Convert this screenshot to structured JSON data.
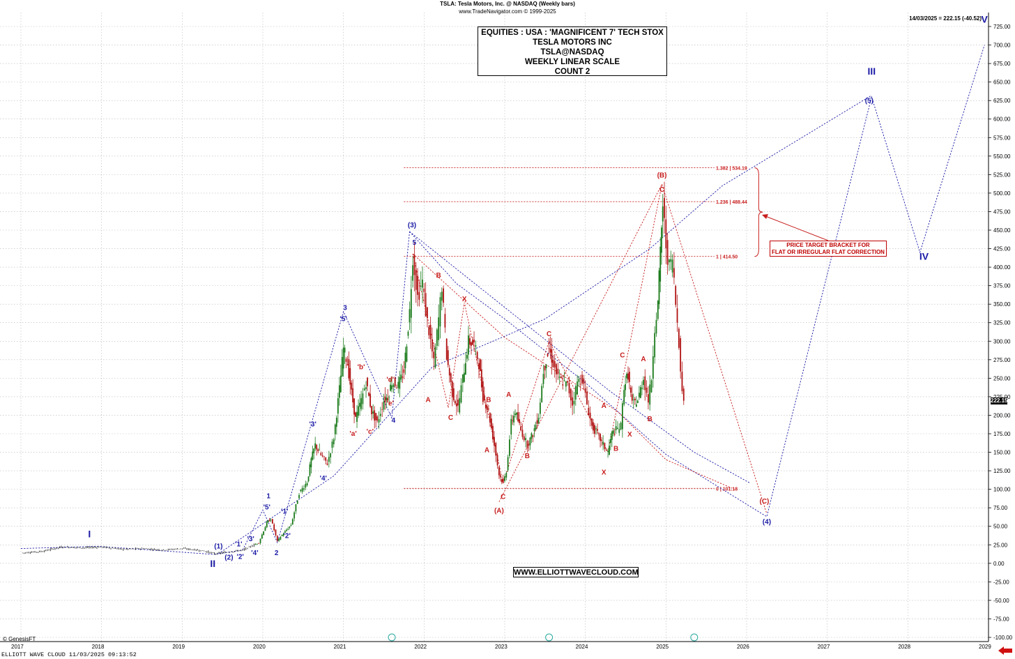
{
  "header": {
    "line1": "TSLA:  Tesla Motors, Inc. @ NASDAQ  (Weekly bars)",
    "line2": "www.TradeNavigator.com © 1999-2025",
    "stamp": "14/03/2025 = 222.15 (-40.52)"
  },
  "title_box": {
    "line1": "EQUITIES : USA : 'MAGNIFICENT 7' TECH STOX",
    "line2": "TESLA MOTORS INC",
    "line3": "TSLA@NASDAQ",
    "line4": "WEEKLY LINEAR SCALE",
    "line5": "COUNT 2"
  },
  "url_box": "WWW.ELLIOTTWAVECLOUD.COM",
  "genesis": "© GenesisFT",
  "footer": "ELLIOTT WAVE CLOUD   11/03/2025 09:13:52",
  "target_box": {
    "line1": "PRICE TARGET BRACKET FOR",
    "line2": "FLAT OR IRREGULAR FLAT CORRECTION"
  },
  "last_price_tag": "222.15",
  "colors": {
    "blue": "#1a1aa6",
    "red": "#c81e1e",
    "grid": "#b8b8b8",
    "candle_up": "#1a7a1a",
    "candle_down": "#b01010",
    "background": "#ffffff"
  },
  "chart_data": {
    "type": "line",
    "title": "TSLA:  Tesla Motors, Inc. @ NASDAQ  (Weekly bars)",
    "xlabel": "",
    "ylabel": "",
    "x_range": [
      2017.0,
      2029.0
    ],
    "ylim": [
      -100,
      725
    ],
    "y_ticks": [
      "725.00",
      "700.00",
      "675.00",
      "650.00",
      "625.00",
      "600.00",
      "575.00",
      "550.00",
      "525.00",
      "500.00",
      "475.00",
      "450.00",
      "425.00",
      "400.00",
      "375.00",
      "350.00",
      "325.00",
      "300.00",
      "275.00",
      "250.00",
      "225.00",
      "200.00",
      "175.00",
      "150.00",
      "125.00",
      "100.00",
      "75.00",
      "50.00",
      "25.00",
      "0.00",
      "-25.00",
      "-50.00",
      "-75.00",
      "-100.00"
    ],
    "x_ticks": [
      "2017",
      "2018",
      "2019",
      "2020",
      "2021",
      "2022",
      "2023",
      "2024",
      "2025",
      "2026",
      "2027",
      "2028",
      "2029"
    ],
    "grid": true,
    "series": [
      {
        "name": "TSLA",
        "points": [
          [
            2017.0,
            14
          ],
          [
            2017.25,
            16
          ],
          [
            2017.5,
            22
          ],
          [
            2017.75,
            21
          ],
          [
            2018.0,
            22
          ],
          [
            2018.25,
            19
          ],
          [
            2018.5,
            20
          ],
          [
            2018.75,
            18
          ],
          [
            2019.0,
            20
          ],
          [
            2019.25,
            17
          ],
          [
            2019.4,
            13
          ],
          [
            2019.55,
            15
          ],
          [
            2019.75,
            18
          ],
          [
            2019.95,
            28
          ],
          [
            2020.05,
            55
          ],
          [
            2020.1,
            60
          ],
          [
            2020.18,
            30
          ],
          [
            2020.22,
            36
          ],
          [
            2020.35,
            52
          ],
          [
            2020.45,
            95
          ],
          [
            2020.55,
            110
          ],
          [
            2020.6,
            140
          ],
          [
            2020.65,
            160
          ],
          [
            2020.72,
            146
          ],
          [
            2020.8,
            135
          ],
          [
            2020.88,
            170
          ],
          [
            2020.95,
            235
          ],
          [
            2021.0,
            290
          ],
          [
            2021.05,
            270
          ],
          [
            2021.1,
            230
          ],
          [
            2021.15,
            195
          ],
          [
            2021.22,
            220
          ],
          [
            2021.28,
            245
          ],
          [
            2021.35,
            205
          ],
          [
            2021.42,
            190
          ],
          [
            2021.5,
            220
          ],
          [
            2021.55,
            225
          ],
          [
            2021.6,
            245
          ],
          [
            2021.68,
            240
          ],
          [
            2021.75,
            260
          ],
          [
            2021.82,
            340
          ],
          [
            2021.86,
            415
          ],
          [
            2021.92,
            360
          ],
          [
            2021.98,
            380
          ],
          [
            2022.02,
            340
          ],
          [
            2022.08,
            300
          ],
          [
            2022.12,
            270
          ],
          [
            2022.18,
            330
          ],
          [
            2022.22,
            375
          ],
          [
            2022.28,
            280
          ],
          [
            2022.35,
            230
          ],
          [
            2022.42,
            210
          ],
          [
            2022.48,
            250
          ],
          [
            2022.55,
            300
          ],
          [
            2022.62,
            295
          ],
          [
            2022.68,
            270
          ],
          [
            2022.73,
            225
          ],
          [
            2022.8,
            205
          ],
          [
            2022.87,
            160
          ],
          [
            2022.93,
            120
          ],
          [
            2022.98,
            108
          ],
          [
            2023.02,
            125
          ],
          [
            2023.08,
            190
          ],
          [
            2023.13,
            205
          ],
          [
            2023.2,
            180
          ],
          [
            2023.28,
            160
          ],
          [
            2023.35,
            175
          ],
          [
            2023.42,
            200
          ],
          [
            2023.48,
            260
          ],
          [
            2023.55,
            290
          ],
          [
            2023.6,
            270
          ],
          [
            2023.66,
            250
          ],
          [
            2023.72,
            245
          ],
          [
            2023.78,
            240
          ],
          [
            2023.84,
            215
          ],
          [
            2023.9,
            245
          ],
          [
            2023.96,
            250
          ],
          [
            2024.02,
            215
          ],
          [
            2024.08,
            185
          ],
          [
            2024.15,
            175
          ],
          [
            2024.22,
            160
          ],
          [
            2024.28,
            150
          ],
          [
            2024.33,
            175
          ],
          [
            2024.38,
            180
          ],
          [
            2024.44,
            185
          ],
          [
            2024.48,
            240
          ],
          [
            2024.53,
            255
          ],
          [
            2024.58,
            215
          ],
          [
            2024.65,
            220
          ],
          [
            2024.72,
            250
          ],
          [
            2024.78,
            220
          ],
          [
            2024.82,
            250
          ],
          [
            2024.86,
            320
          ],
          [
            2024.9,
            350
          ],
          [
            2024.93,
            420
          ],
          [
            2024.96,
            485
          ],
          [
            2025.0,
            430
          ],
          [
            2025.04,
            400
          ],
          [
            2025.08,
            410
          ],
          [
            2025.12,
            350
          ],
          [
            2025.16,
            300
          ],
          [
            2025.2,
            230
          ],
          [
            2025.22,
            222
          ]
        ]
      }
    ],
    "reference_levels": [
      {
        "label": "1.382 | 534.19",
        "value": 534.19
      },
      {
        "label": "1.236 | 488.44",
        "value": 488.44
      },
      {
        "label": "1 | 414.50",
        "value": 414.5
      },
      {
        "label": "0 | 101.18",
        "value": 101.18
      }
    ],
    "blue_projection": [
      [
        2021.82,
        448
      ],
      [
        2022.4,
        378
      ],
      [
        2023.0,
        330
      ],
      [
        2024.0,
        244
      ],
      [
        2025.0,
        147
      ],
      [
        2026.25,
        63
      ],
      [
        2027.55,
        630
      ],
      [
        2028.15,
        420
      ],
      [
        2028.95,
        700
      ]
    ],
    "blue_channel_upper": [
      [
        2019.45,
        13
      ],
      [
        2020.88,
        118
      ],
      [
        2022.1,
        265
      ],
      [
        2023.5,
        330
      ],
      [
        2024.8,
        425
      ],
      [
        2025.7,
        510
      ],
      [
        2027.55,
        632
      ]
    ],
    "blue_channel_lower": [
      [
        2021.82,
        448
      ],
      [
        2024.3,
        233
      ],
      [
        2025.35,
        150
      ],
      [
        2026.05,
        108
      ]
    ],
    "blue_early_dotted": [
      [
        2017.0,
        20
      ],
      [
        2017.95,
        23
      ],
      [
        2019.4,
        12
      ],
      [
        2019.75,
        18
      ],
      [
        2020.0,
        72
      ],
      [
        2020.18,
        28
      ],
      [
        2021.0,
        340
      ],
      [
        2021.6,
        196
      ],
      [
        2021.82,
        448
      ]
    ],
    "red_projection": [
      [
        2022.93,
        83
      ],
      [
        2024.95,
        512
      ],
      [
        2026.25,
        67
      ]
    ],
    "red_channel": [
      [
        2021.86,
        418
      ],
      [
        2023.0,
        305
      ],
      [
        2024.4,
        205
      ],
      [
        2025.0,
        140
      ],
      [
        2025.85,
        100
      ]
    ],
    "target_bracket": {
      "label": "PRICE TARGET BRACKET FOR FLAT OR IRREGULAR FLAT CORRECTION",
      "top": 534.19,
      "bottom": 414.5
    },
    "wave_labels_blue": [
      {
        "text": "I",
        "x": 2017.85,
        "y": 35,
        "size": "big"
      },
      {
        "text": "II",
        "x": 2019.38,
        "y": -5,
        "size": "big"
      },
      {
        "text": "III",
        "x": 2027.55,
        "y": 660,
        "size": "big"
      },
      {
        "text": "IV",
        "x": 2028.2,
        "y": 410,
        "size": "big"
      },
      {
        "text": "V",
        "x": 2028.95,
        "y": 730,
        "size": "big"
      },
      {
        "text": "(1)",
        "x": 2019.45,
        "y": 20
      },
      {
        "text": "(2)",
        "x": 2019.58,
        "y": 5
      },
      {
        "text": "'1'",
        "x": 2019.7,
        "y": 23
      },
      {
        "text": "'2'",
        "x": 2019.72,
        "y": 6
      },
      {
        "text": "'3'",
        "x": 2019.85,
        "y": 30
      },
      {
        "text": "'4'",
        "x": 2019.9,
        "y": 11
      },
      {
        "text": "'5'",
        "x": 2020.05,
        "y": 73
      },
      {
        "text": "1",
        "x": 2020.07,
        "y": 88
      },
      {
        "text": "2",
        "x": 2020.17,
        "y": 11
      },
      {
        "text": "'1'",
        "x": 2020.27,
        "y": 67
      },
      {
        "text": "'2'",
        "x": 2020.3,
        "y": 34
      },
      {
        "text": "'3'",
        "x": 2020.62,
        "y": 185
      },
      {
        "text": "'4'",
        "x": 2020.75,
        "y": 112
      },
      {
        "text": "'5'",
        "x": 2021.0,
        "y": 327
      },
      {
        "text": "3",
        "x": 2021.02,
        "y": 342
      },
      {
        "text": "4",
        "x": 2021.62,
        "y": 190
      },
      {
        "text": "5",
        "x": 2021.88,
        "y": 430
      },
      {
        "text": "(3)",
        "x": 2021.85,
        "y": 454
      },
      {
        "text": "(4)",
        "x": 2026.25,
        "y": 53
      },
      {
        "text": "(5)",
        "x": 2027.52,
        "y": 622
      }
    ],
    "wave_labels_red": [
      {
        "text": "'a'",
        "x": 2021.12,
        "y": 172
      },
      {
        "text": "'b'",
        "x": 2021.22,
        "y": 262
      },
      {
        "text": "'c'",
        "x": 2021.33,
        "y": 175
      },
      {
        "text": "'d'",
        "x": 2021.58,
        "y": 245
      },
      {
        "text": "'e'",
        "x": 2021.58,
        "y": 213
      },
      {
        "text": "A",
        "x": 2022.05,
        "y": 218
      },
      {
        "text": "B",
        "x": 2022.18,
        "y": 386
      },
      {
        "text": "C",
        "x": 2022.33,
        "y": 194
      },
      {
        "text": "X",
        "x": 2022.5,
        "y": 354
      },
      {
        "text": "A",
        "x": 2022.78,
        "y": 150
      },
      {
        "text": "B",
        "x": 2022.8,
        "y": 218
      },
      {
        "text": "C",
        "x": 2022.98,
        "y": 87
      },
      {
        "text": "(A)",
        "x": 2022.93,
        "y": 68
      },
      {
        "text": "A",
        "x": 2023.05,
        "y": 225
      },
      {
        "text": "B",
        "x": 2023.28,
        "y": 142
      },
      {
        "text": "C",
        "x": 2023.55,
        "y": 307
      },
      {
        "text": "A",
        "x": 2024.23,
        "y": 210
      },
      {
        "text": "X",
        "x": 2024.23,
        "y": 120
      },
      {
        "text": "B",
        "x": 2024.38,
        "y": 152
      },
      {
        "text": "C",
        "x": 2024.46,
        "y": 278
      },
      {
        "text": "X",
        "x": 2024.55,
        "y": 171
      },
      {
        "text": "A",
        "x": 2024.72,
        "y": 273
      },
      {
        "text": "B",
        "x": 2024.8,
        "y": 192
      },
      {
        "text": "C",
        "x": 2024.95,
        "y": 502
      },
      {
        "text": "(B)",
        "x": 2024.95,
        "y": 521
      },
      {
        "text": "(C)",
        "x": 2026.22,
        "y": 81
      }
    ]
  }
}
